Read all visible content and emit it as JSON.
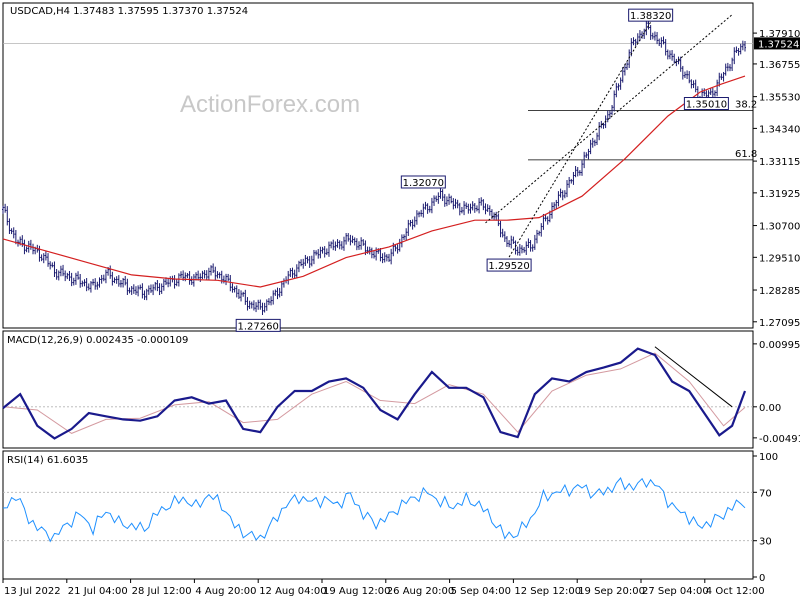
{
  "watermark": "ActionForex.com",
  "header": {
    "symbol_info": "USDCAD,H4  1.37483 1.37595 1.37370 1.37524",
    "macd_info": "MACD(12,26,9) 0.002435 -0.000109",
    "rsi_info": "RSI(14) 61.6035"
  },
  "colors": {
    "candle": "#1a1a6e",
    "ma": "#d42020",
    "macd_main": "#1a1a8c",
    "macd_signal": "#d49aa0",
    "rsi": "#1e90ff",
    "grid": "#b4b4b4"
  },
  "chart_data": [
    {
      "type": "candlestick",
      "title": "USDCAD,H4  1.37483 1.37595 1.37370 1.37524",
      "ylim": [
        1.269,
        1.39
      ],
      "y_ticks": [
        "1.37910",
        "1.37524",
        "1.36755",
        "1.35530",
        "1.34340",
        "1.33115",
        "1.31925",
        "1.30700",
        "1.29510",
        "1.28285",
        "1.27095"
      ],
      "last_price": "1.37524",
      "series": [
        {
          "name": "price (approx close)",
          "points": [
            [
              0,
              1.313
            ],
            [
              6,
              1.301
            ],
            [
              12,
              1.299
            ],
            [
              18,
              1.296
            ],
            [
              24,
              1.29
            ],
            [
              30,
              1.288
            ],
            [
              36,
              1.286
            ],
            [
              42,
              1.284
            ],
            [
              48,
              1.289
            ],
            [
              54,
              1.286
            ],
            [
              60,
              1.283
            ],
            [
              66,
              1.282
            ],
            [
              72,
              1.284
            ],
            [
              78,
              1.286
            ],
            [
              84,
              1.288
            ],
            [
              90,
              1.287
            ],
            [
              96,
              1.29
            ],
            [
              102,
              1.288
            ],
            [
              108,
              1.283
            ],
            [
              114,
              1.278
            ],
            [
              120,
              1.276
            ],
            [
              126,
              1.28
            ],
            [
              132,
              1.287
            ],
            [
              138,
              1.292
            ],
            [
              144,
              1.295
            ],
            [
              150,
              1.298
            ],
            [
              156,
              1.3
            ],
            [
              162,
              1.302
            ],
            [
              168,
              1.299
            ],
            [
              174,
              1.296
            ],
            [
              180,
              1.295
            ],
            [
              186,
              1.302
            ],
            [
              192,
              1.31
            ],
            [
              198,
              1.314
            ],
            [
              204,
              1.3185
            ],
            [
              210,
              1.315
            ],
            [
              216,
              1.313
            ],
            [
              222,
              1.315
            ],
            [
              228,
              1.312
            ],
            [
              234,
              1.302
            ],
            [
              240,
              1.298
            ],
            [
              246,
              1.299
            ],
            [
              252,
              1.308
            ],
            [
              258,
              1.316
            ],
            [
              264,
              1.323
            ],
            [
              270,
              1.33
            ],
            [
              276,
              1.34
            ],
            [
              282,
              1.348
            ],
            [
              288,
              1.362
            ],
            [
              294,
              1.376
            ],
            [
              300,
              1.381
            ],
            [
              306,
              1.376
            ],
            [
              312,
              1.37
            ],
            [
              318,
              1.364
            ],
            [
              324,
              1.356
            ],
            [
              330,
              1.356
            ],
            [
              336,
              1.364
            ],
            [
              342,
              1.372
            ],
            [
              346,
              1.3752
            ]
          ]
        },
        {
          "name": "moving average",
          "points": [
            [
              0,
              1.302
            ],
            [
              20,
              1.2975
            ],
            [
              40,
              1.293
            ],
            [
              60,
              1.2885
            ],
            [
              80,
              1.287
            ],
            [
              100,
              1.2865
            ],
            [
              120,
              1.284
            ],
            [
              140,
              1.288
            ],
            [
              160,
              1.295
            ],
            [
              180,
              1.299
            ],
            [
              200,
              1.305
            ],
            [
              220,
              1.309
            ],
            [
              235,
              1.309
            ],
            [
              250,
              1.31
            ],
            [
              270,
              1.318
            ],
            [
              290,
              1.332
            ],
            [
              310,
              1.348
            ],
            [
              325,
              1.357
            ],
            [
              335,
              1.36
            ],
            [
              346,
              1.363
            ]
          ]
        }
      ],
      "annotations": [
        {
          "label": "1.38320",
          "x": 302,
          "y": 1.3832
        },
        {
          "label": "1.32070",
          "x": 196,
          "y": 1.3207
        },
        {
          "label": "1.29520",
          "x": 236,
          "y": 1.2952
        },
        {
          "label": "1.27260",
          "x": 119,
          "y": 1.2726
        },
        {
          "label": "1.35010",
          "x": 328,
          "y": 1.3501
        }
      ],
      "fibonacci_levels": [
        {
          "label": "38.2",
          "y": 1.3501
        },
        {
          "label": "61.8",
          "y": 1.3316
        }
      ]
    },
    {
      "type": "line",
      "title": "MACD(12,26,9) 0.002435 -0.000109",
      "ylim": [
        -0.0062,
        0.0112
      ],
      "y_ticks": [
        "0.009956",
        "0.00",
        "-0.004912"
      ],
      "series": [
        {
          "name": "macd",
          "points": [
            [
              0,
              -0.0002
            ],
            [
              8,
              0.002
            ],
            [
              16,
              -0.003
            ],
            [
              24,
              -0.005
            ],
            [
              32,
              -0.0035
            ],
            [
              40,
              -0.001
            ],
            [
              48,
              -0.0015
            ],
            [
              56,
              -0.002
            ],
            [
              64,
              -0.0022
            ],
            [
              72,
              -0.0015
            ],
            [
              80,
              0.001
            ],
            [
              88,
              0.0015
            ],
            [
              96,
              0.0005
            ],
            [
              104,
              0.001
            ],
            [
              112,
              -0.0035
            ],
            [
              120,
              -0.004
            ],
            [
              128,
              0.0
            ],
            [
              136,
              0.0025
            ],
            [
              144,
              0.0025
            ],
            [
              152,
              0.004
            ],
            [
              160,
              0.0045
            ],
            [
              168,
              0.003
            ],
            [
              176,
              -0.0005
            ],
            [
              184,
              -0.002
            ],
            [
              192,
              0.002
            ],
            [
              200,
              0.0055
            ],
            [
              208,
              0.003
            ],
            [
              216,
              0.003
            ],
            [
              224,
              0.0015
            ],
            [
              232,
              -0.004
            ],
            [
              240,
              -0.0048
            ],
            [
              248,
              0.002
            ],
            [
              256,
              0.0045
            ],
            [
              264,
              0.004
            ],
            [
              272,
              0.0055
            ],
            [
              280,
              0.0062
            ],
            [
              288,
              0.007
            ],
            [
              296,
              0.0092
            ],
            [
              304,
              0.0082
            ],
            [
              312,
              0.004
            ],
            [
              320,
              0.0025
            ],
            [
              328,
              -0.0015
            ],
            [
              334,
              -0.0045
            ],
            [
              340,
              -0.003
            ],
            [
              346,
              0.0025
            ]
          ]
        },
        {
          "name": "signal",
          "points": [
            [
              0,
              0.0
            ],
            [
              16,
              -0.0005
            ],
            [
              32,
              -0.0042
            ],
            [
              48,
              -0.002
            ],
            [
              64,
              -0.0018
            ],
            [
              80,
              0.0003
            ],
            [
              96,
              0.0008
            ],
            [
              112,
              -0.0025
            ],
            [
              128,
              -0.002
            ],
            [
              144,
              0.002
            ],
            [
              160,
              0.004
            ],
            [
              176,
              0.001
            ],
            [
              192,
              0.0005
            ],
            [
              208,
              0.0035
            ],
            [
              224,
              0.002
            ],
            [
              240,
              -0.004
            ],
            [
              256,
              0.0025
            ],
            [
              272,
              0.005
            ],
            [
              288,
              0.006
            ],
            [
              304,
              0.0085
            ],
            [
              320,
              0.004
            ],
            [
              336,
              -0.003
            ],
            [
              346,
              -0.0001
            ]
          ]
        }
      ]
    },
    {
      "type": "line",
      "title": "RSI(14) 61.6035",
      "ylim": [
        0,
        100
      ],
      "y_ticks": [
        "100",
        "70",
        "30",
        "0"
      ],
      "series": [
        {
          "name": "rsi",
          "points": [
            [
              0,
              55
            ],
            [
              6,
              68
            ],
            [
              12,
              48
            ],
            [
              18,
              38
            ],
            [
              24,
              33
            ],
            [
              30,
              44
            ],
            [
              36,
              52
            ],
            [
              42,
              40
            ],
            [
              48,
              55
            ],
            [
              54,
              45
            ],
            [
              60,
              42
            ],
            [
              66,
              40
            ],
            [
              72,
              53
            ],
            [
              78,
              60
            ],
            [
              84,
              65
            ],
            [
              90,
              58
            ],
            [
              96,
              68
            ],
            [
              102,
              60
            ],
            [
              108,
              42
            ],
            [
              114,
              35
            ],
            [
              120,
              32
            ],
            [
              126,
              45
            ],
            [
              132,
              60
            ],
            [
              138,
              66
            ],
            [
              144,
              62
            ],
            [
              150,
              64
            ],
            [
              156,
              60
            ],
            [
              162,
              68
            ],
            [
              168,
              52
            ],
            [
              174,
              44
            ],
            [
              180,
              50
            ],
            [
              186,
              60
            ],
            [
              192,
              66
            ],
            [
              198,
              70
            ],
            [
              204,
              62
            ],
            [
              210,
              58
            ],
            [
              216,
              64
            ],
            [
              222,
              60
            ],
            [
              228,
              48
            ],
            [
              234,
              34
            ],
            [
              240,
              36
            ],
            [
              246,
              48
            ],
            [
              252,
              66
            ],
            [
              258,
              70
            ],
            [
              264,
              72
            ],
            [
              270,
              75
            ],
            [
              276,
              68
            ],
            [
              282,
              72
            ],
            [
              288,
              78
            ],
            [
              294,
              74
            ],
            [
              300,
              80
            ],
            [
              306,
              74
            ],
            [
              312,
              58
            ],
            [
              318,
              52
            ],
            [
              324,
              42
            ],
            [
              330,
              45
            ],
            [
              336,
              52
            ],
            [
              342,
              60
            ],
            [
              346,
              62
            ]
          ]
        }
      ]
    }
  ],
  "x_axis_labels": [
    "13 Jul 2022",
    "21 Jul 04:00",
    "28 Jul 12:00",
    "4 Aug 20:00",
    "12 Aug 04:00",
    "19 Aug 12:00",
    "26 Aug 20:00",
    "5 Sep 04:00",
    "12 Sep 12:00",
    "19 Sep 20:00",
    "27 Sep 04:00",
    "4 Oct 12:00"
  ]
}
